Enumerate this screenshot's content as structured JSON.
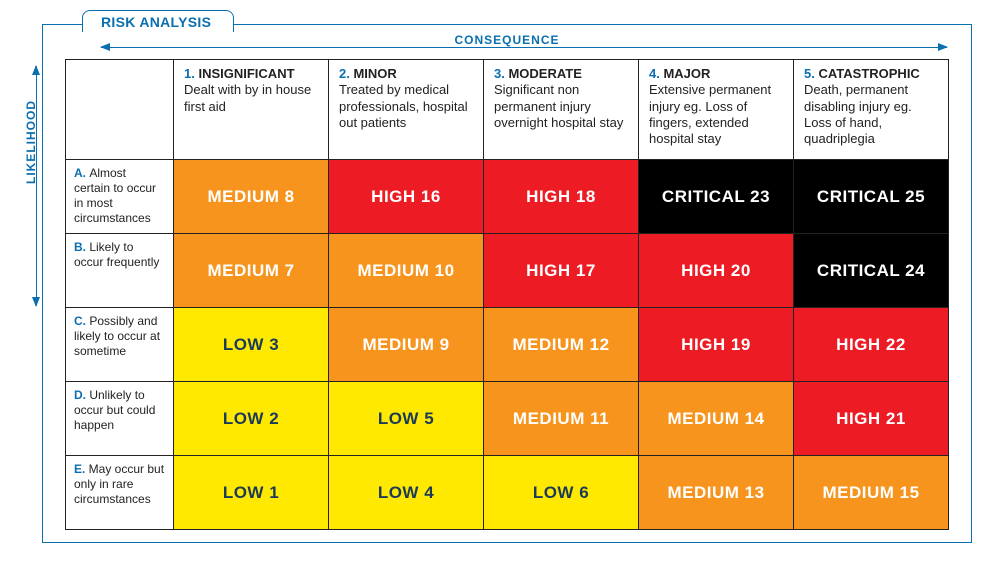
{
  "title": "RISK ANALYSIS",
  "axes": {
    "consequence": "CONSEQUENCE",
    "likelihood": "LIKELIHOOD"
  },
  "colors": {
    "accent": "#0a6fb0",
    "border": "#222222",
    "levels": {
      "low": {
        "bg": "#ffe900",
        "fg": "#1b3a58"
      },
      "medium": {
        "bg": "#f7941d",
        "fg": "#ffffff"
      },
      "high": {
        "bg": "#ed1c24",
        "fg": "#ffffff"
      },
      "critical": {
        "bg": "#000000",
        "fg": "#ffffff"
      }
    }
  },
  "columns": [
    {
      "num": "1.",
      "title": "INSIGNIFICANT",
      "desc": "Dealt with by in house first aid"
    },
    {
      "num": "2.",
      "title": "MINOR",
      "desc": "Treated by medical professionals, hospital out patients"
    },
    {
      "num": "3.",
      "title": "MODERATE",
      "desc": "Significant non permanent injury overnight hospital stay"
    },
    {
      "num": "4.",
      "title": "MAJOR",
      "desc": "Extensive permanent injury  eg. Loss of fingers, extended hospital stay"
    },
    {
      "num": "5.",
      "title": "CATASTROPHIC",
      "desc": "Death, permanent disabling injury eg. Loss of hand, quadriplegia"
    }
  ],
  "rows": [
    {
      "let": "A.",
      "desc": "Almost certain to occur in most circumstances"
    },
    {
      "let": "B.",
      "desc": "Likely to occur frequently"
    },
    {
      "let": "C.",
      "desc": "Possibly and likely to occur at sometime"
    },
    {
      "let": "D.",
      "desc": "Unlikely to occur but could happen"
    },
    {
      "let": "E.",
      "desc": "May occur but only in rare circumstances"
    }
  ],
  "cells": [
    [
      {
        "level": "medium",
        "label": "MEDIUM 8"
      },
      {
        "level": "high",
        "label": "HIGH 16"
      },
      {
        "level": "high",
        "label": "HIGH 18"
      },
      {
        "level": "critical",
        "label": "CRITICAL 23"
      },
      {
        "level": "critical",
        "label": "CRITICAL 25"
      }
    ],
    [
      {
        "level": "medium",
        "label": "MEDIUM 7"
      },
      {
        "level": "medium",
        "label": "MEDIUM 10"
      },
      {
        "level": "high",
        "label": "HIGH 17"
      },
      {
        "level": "high",
        "label": "HIGH 20"
      },
      {
        "level": "critical",
        "label": "CRITICAL 24"
      }
    ],
    [
      {
        "level": "low",
        "label": "LOW 3"
      },
      {
        "level": "medium",
        "label": "MEDIUM 9"
      },
      {
        "level": "medium",
        "label": "MEDIUM 12"
      },
      {
        "level": "high",
        "label": "HIGH 19"
      },
      {
        "level": "high",
        "label": "HIGH 22"
      }
    ],
    [
      {
        "level": "low",
        "label": "LOW 2"
      },
      {
        "level": "low",
        "label": "LOW 5"
      },
      {
        "level": "medium",
        "label": "MEDIUM 11"
      },
      {
        "level": "medium",
        "label": "MEDIUM 14"
      },
      {
        "level": "high",
        "label": "HIGH 21"
      }
    ],
    [
      {
        "level": "low",
        "label": "LOW 1"
      },
      {
        "level": "low",
        "label": "LOW 4"
      },
      {
        "level": "low",
        "label": "LOW 6"
      },
      {
        "level": "medium",
        "label": "MEDIUM 13"
      },
      {
        "level": "medium",
        "label": "MEDIUM 15"
      }
    ]
  ]
}
